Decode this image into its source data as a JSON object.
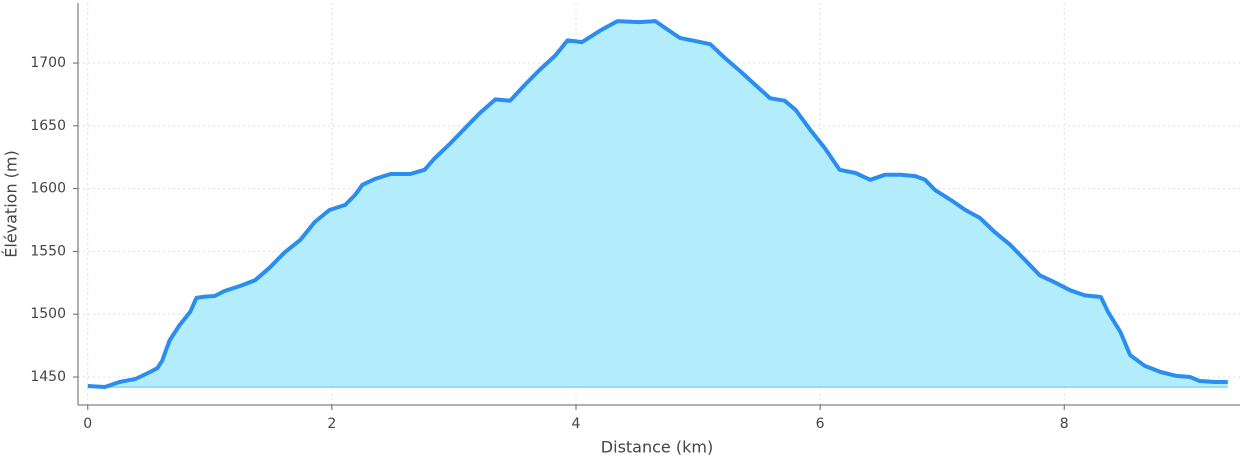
{
  "chart_data": {
    "type": "area",
    "x_label": "Distance (km)",
    "y_label": "Élévation (m)",
    "x": [
      0,
      0.14,
      0.26,
      0.39,
      0.51,
      0.57,
      0.61,
      0.67,
      0.75,
      0.84,
      0.89,
      0.96,
      1.04,
      1.12,
      1.25,
      1.37,
      1.49,
      1.61,
      1.74,
      1.86,
      1.98,
      2.11,
      2.19,
      2.25,
      2.36,
      2.48,
      2.64,
      2.76,
      2.84,
      2.97,
      3.09,
      3.21,
      3.34,
      3.46,
      3.58,
      3.7,
      3.83,
      3.93,
      4.05,
      4.2,
      4.34,
      4.52,
      4.65,
      4.73,
      4.85,
      4.98,
      5.1,
      5.22,
      5.34,
      5.47,
      5.59,
      5.71,
      5.8,
      5.92,
      6.04,
      6.16,
      6.29,
      6.41,
      6.53,
      6.66,
      6.78,
      6.86,
      6.94,
      7.07,
      7.19,
      7.31,
      7.43,
      7.56,
      7.68,
      7.8,
      7.93,
      8.05,
      8.17,
      8.3,
      8.36,
      8.46,
      8.54,
      8.66,
      8.79,
      8.91,
      9.03,
      9.11,
      9.24,
      9.34
    ],
    "series": [
      {
        "name": "Élévation",
        "color": "#2a8ef0",
        "fill": "#b3ecfa",
        "values": [
          1442.8,
          1442,
          1446,
          1448.4,
          1454,
          1457,
          1463,
          1479,
          1491,
          1502,
          1513,
          1514,
          1514.5,
          1518.5,
          1522.5,
          1527,
          1537,
          1549,
          1559,
          1573.4,
          1583,
          1587,
          1595,
          1603,
          1608,
          1611.6,
          1611.6,
          1615,
          1624,
          1636,
          1648,
          1660,
          1671,
          1670,
          1682.5,
          1694.4,
          1706,
          1718,
          1716.7,
          1726,
          1733.4,
          1732.6,
          1733.4,
          1728,
          1720,
          1717.5,
          1715,
          1704,
          1694,
          1682.5,
          1672,
          1670,
          1662.6,
          1646.7,
          1632,
          1615,
          1612.4,
          1607,
          1611,
          1611,
          1610,
          1607,
          1599,
          1591,
          1583,
          1576.6,
          1565.4,
          1555,
          1543,
          1531,
          1525,
          1519,
          1515,
          1513.7,
          1501.6,
          1485.8,
          1467.5,
          1458.8,
          1454,
          1451,
          1450,
          1446.8,
          1446,
          1446
        ]
      }
    ],
    "xlim": [
      -0.08,
      9.44
    ],
    "ylim": [
      1427.7,
      1747.8
    ],
    "xticks": [
      0,
      2,
      4,
      6,
      8
    ],
    "yticks": [
      1450,
      1500,
      1550,
      1600,
      1650,
      1700
    ],
    "grid": true
  }
}
